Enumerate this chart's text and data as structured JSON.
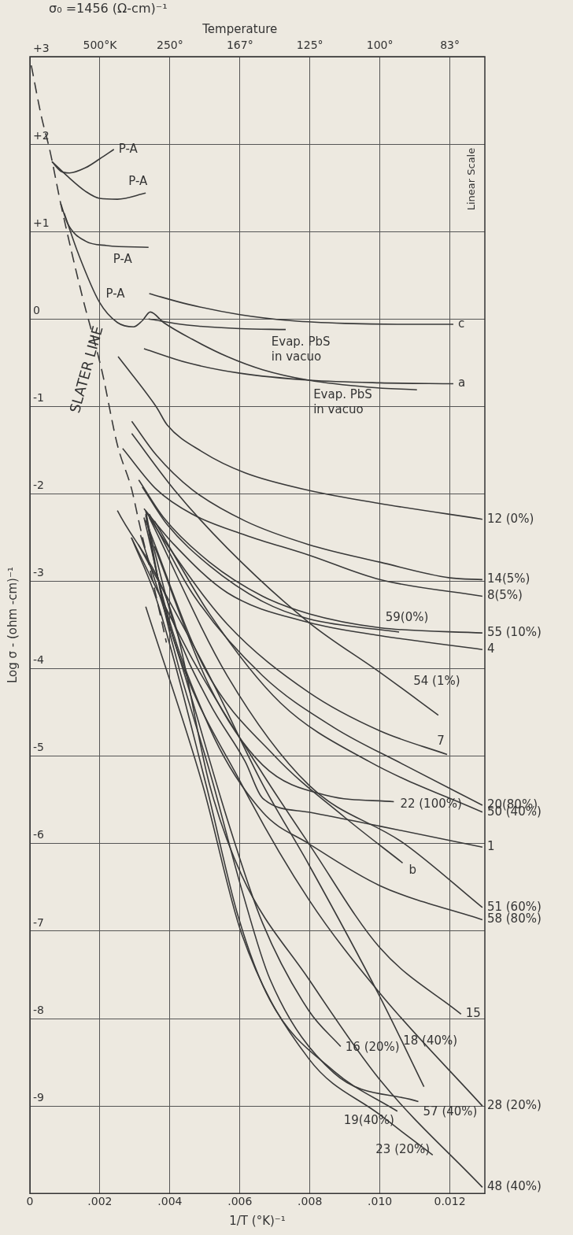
{
  "chart_data": {
    "type": "line",
    "xlabel": "1/T (°K)⁻¹",
    "ylabel": "Log σ - (ohm -cm)⁻¹",
    "xlim": [
      0,
      0.013
    ],
    "xticks": [
      {
        "value": 0,
        "label": "0"
      },
      {
        "value": 0.002,
        "label": ".002"
      },
      {
        "value": 0.004,
        "label": ".004"
      },
      {
        "value": 0.006,
        "label": ".006"
      },
      {
        "value": 0.008,
        "label": ".008"
      },
      {
        "value": 0.01,
        "label": ".010"
      },
      {
        "value": 0.012,
        "label": "0.012"
      }
    ],
    "ylim": [
      -10,
      3
    ],
    "yticks": [
      {
        "value": 3,
        "label": "+3"
      },
      {
        "value": 2,
        "label": "+2"
      },
      {
        "value": 1,
        "label": "+1"
      },
      0,
      -1,
      -2,
      -3,
      -4,
      -5,
      -6,
      -7,
      -8,
      -9,
      {
        "value": -10,
        "label": null
      }
    ],
    "grid": true,
    "legend": false,
    "annotations": [
      "σ₀ =1456 (Ω-cm)⁻¹",
      "Linear Scale",
      "Evap. PbS in vacuo",
      "Evap. PbS in vacuo",
      "Temperature",
      "500°K",
      "250°",
      "167°",
      "125°",
      "100°",
      "83°"
    ],
    "series": [
      {
        "name": "SLATER LINE",
        "color": "#3a3a3a",
        "line_style": "dashed",
        "x": [
          4e-05,
          0.00032,
          0.00058,
          0.00088,
          0.00149,
          0.00205,
          0.0025,
          0.00291,
          0.00311,
          0.0035,
          0.0039
        ],
        "values": [
          2.9,
          2.33,
          1.91,
          1.32,
          0.27,
          -0.58,
          -1.44,
          -1.95,
          -2.31,
          -2.98,
          -3.7
        ]
      },
      {
        "name": "P-A",
        "color": "#3a3a3a",
        "x": [
          0.00063,
          0.00088,
          0.00113,
          0.00159,
          0.00199,
          0.0024
        ],
        "values": [
          1.8,
          1.69,
          1.67,
          1.73,
          1.83,
          1.94
        ]
      },
      {
        "name": "P-A",
        "color": "#3a3a3a",
        "x": [
          0.00063,
          0.00108,
          0.00159,
          0.00199,
          0.0025,
          0.00331
        ],
        "values": [
          1.8,
          1.63,
          1.46,
          1.38,
          1.37,
          1.44
        ]
      },
      {
        "name": "P-A",
        "color": "#3a3a3a",
        "x": [
          0.00088,
          0.00108,
          0.00159,
          0.0022,
          0.00339
        ],
        "values": [
          1.32,
          1.09,
          0.89,
          0.84,
          0.82
        ]
      },
      {
        "name": "P-A",
        "color": "#3a3a3a",
        "x": [
          0.00098,
          0.00139,
          0.00199,
          0.0025,
          0.00296,
          0.00321,
          0.00344,
          0.00382,
          0.00463,
          0.00564,
          0.00665,
          0.00797,
          0.00969,
          0.01106
        ],
        "values": [
          1.21,
          0.74,
          0.19,
          -0.04,
          -0.09,
          -0.02,
          0.08,
          -0.04,
          -0.23,
          -0.43,
          -0.58,
          -0.7,
          -0.78,
          -0.81
        ]
      },
      {
        "color": "#3a3a3a",
        "x": [
          0.00339,
          0.0045,
          0.006,
          0.00731
        ],
        "values": [
          0,
          -0.07,
          -0.11,
          -0.12
        ]
      },
      {
        "name": "c",
        "color": "#3a3a3a",
        "x": [
          0.00341,
          0.0045,
          0.006,
          0.0075,
          0.009,
          0.0105,
          0.0121
        ],
        "values": [
          0.29,
          0.17,
          0.05,
          -0.02,
          -0.05,
          -0.06,
          -0.06
        ]
      },
      {
        "name": "a",
        "color": "#3a3a3a",
        "x": [
          0.00326,
          0.0045,
          0.006,
          0.008,
          0.01,
          0.0121
        ],
        "values": [
          -0.34,
          -0.5,
          -0.62,
          -0.7,
          -0.73,
          -0.74
        ]
      },
      {
        "name": "12 (0%)",
        "color": "#3a3a3a",
        "x": [
          0.00252,
          0.00362,
          0.00392,
          0.00493,
          0.00615,
          0.00797,
          0.01,
          0.01293
        ],
        "values": [
          -0.43,
          -1.01,
          -1.21,
          -1.52,
          -1.76,
          -1.96,
          -2.11,
          -2.29
        ]
      },
      {
        "name": "14(5%)",
        "color": "#3a3a3a",
        "x": [
          0.00291,
          0.00362,
          0.00463,
          0.00615,
          0.00797,
          0.01,
          0.012,
          0.01293
        ],
        "values": [
          -1.17,
          -1.56,
          -1.95,
          -2.31,
          -2.58,
          -2.78,
          -2.96,
          -2.98
        ]
      },
      {
        "name": "8(5%)",
        "color": "#3a3a3a",
        "x": [
          0.00265,
          0.00362,
          0.00463,
          0.00615,
          0.00797,
          0.01,
          0.01293
        ],
        "values": [
          -1.48,
          -1.95,
          -2.23,
          -2.47,
          -2.7,
          -2.98,
          -3.17
        ]
      },
      {
        "name": "59(0%)",
        "color": "#3a3a3a",
        "x": [
          0.00321,
          0.00392,
          0.00513,
          0.00665,
          0.00797,
          0.01055
        ],
        "values": [
          -1.92,
          -2.35,
          -2.82,
          -3.23,
          -3.43,
          -3.58
        ]
      },
      {
        "name": "55 (10%)",
        "color": "#3a3a3a",
        "x": [
          0.00311,
          0.00382,
          0.00513,
          0.00665,
          0.00797,
          0.01,
          0.01293
        ],
        "values": [
          -1.84,
          -2.27,
          -2.78,
          -3.17,
          -3.37,
          -3.53,
          -3.59
        ]
      },
      {
        "name": "4",
        "color": "#3a3a3a",
        "x": [
          0.00326,
          0.00412,
          0.00564,
          0.00797,
          0.01,
          0.01293
        ],
        "values": [
          -2.17,
          -2.58,
          -3.13,
          -3.47,
          -3.62,
          -3.78
        ]
      },
      {
        "name": "54 (1%)",
        "color": "#3a3a3a",
        "x": [
          0.00291,
          0.00412,
          0.00564,
          0.00797,
          0.01,
          0.01167
        ],
        "values": [
          -1.31,
          -1.95,
          -2.62,
          -3.47,
          -4.04,
          -4.53
        ]
      },
      {
        "name": "7",
        "color": "#3a3a3a",
        "x": [
          0.00331,
          0.00392,
          0.00564,
          0.00797,
          0.01,
          0.01192
        ],
        "values": [
          -2.2,
          -2.58,
          -3.49,
          -4.27,
          -4.71,
          -4.98
        ]
      },
      {
        "name": "20(80%)",
        "color": "#3a3a3a",
        "x": [
          0.00341,
          0.00463,
          0.00665,
          0.00868,
          0.0107,
          0.01293
        ],
        "values": [
          -2.23,
          -3.13,
          -4.08,
          -4.67,
          -5.1,
          -5.56
        ]
      },
      {
        "name": "50 (40%)",
        "color": "#3a3a3a",
        "x": [
          0.00356,
          0.00513,
          0.00716,
          0.00969,
          0.01293
        ],
        "values": [
          -2.31,
          -3.37,
          -4.39,
          -5.06,
          -5.64
        ]
      },
      {
        "name": "22 (100%)",
        "color": "#3a3a3a",
        "x": [
          0.00356,
          0.00513,
          0.00665,
          0.0085,
          0.0104
        ],
        "values": [
          -2.6,
          -4.2,
          -5.1,
          -5.45,
          -5.52
        ]
      },
      {
        "name": "1",
        "color": "#3a3a3a",
        "x": [
          0.00331,
          0.00412,
          0.00513,
          0.00615,
          0.00665,
          0.00797,
          0.01,
          0.01293
        ],
        "values": [
          -2.25,
          -3.49,
          -4.39,
          -5.06,
          -5.48,
          -5.64,
          -5.8,
          -6.04
        ]
      },
      {
        "name": "b",
        "color": "#3a3a3a",
        "x": [
          0.0033,
          0.005,
          0.007,
          0.009,
          0.01065
        ],
        "values": [
          -2.3,
          -4,
          -5,
          -5.7,
          -6.22
        ]
      },
      {
        "name": "51 (60%)",
        "color": "#3a3a3a",
        "x": [
          0.00341,
          0.00564,
          0.00797,
          0.0107,
          0.01293
        ],
        "values": [
          -2.27,
          -4.08,
          -5.33,
          -6,
          -6.73
        ]
      },
      {
        "name": "58 (80%)",
        "color": "#3a3a3a",
        "x": [
          0.00331,
          0.00362,
          0.00513,
          0.00665,
          0.00797,
          0.01,
          0.01293
        ],
        "values": [
          -2.23,
          -2.9,
          -4.67,
          -5.64,
          -6,
          -6.48,
          -6.87
        ]
      },
      {
        "name": "15",
        "color": "#3a3a3a",
        "x": [
          0.0029,
          0.00463,
          0.00665,
          0.00797,
          0.01,
          0.01232
        ],
        "values": [
          -2.5,
          -3.88,
          -5.2,
          -6,
          -7.19,
          -7.95
        ]
      },
      {
        "name": "16 (20%)",
        "color": "#3a3a3a",
        "x": [
          0.00316,
          0.00443,
          0.00564,
          0.00665,
          0.00797,
          0.00888
        ],
        "values": [
          -2.47,
          -4.08,
          -5.72,
          -6.91,
          -7.91,
          -8.32
        ]
      },
      {
        "name": "18 (40%)",
        "color": "#3a3a3a",
        "x": [
          0.0031,
          0.00513,
          0.00665,
          0.00797,
          0.01,
          0.01126
        ],
        "values": [
          -2.58,
          -4.08,
          -5.32,
          -6.24,
          -7.75,
          -8.78
        ]
      },
      {
        "name": "28 (20%)",
        "color": "#3a3a3a",
        "x": [
          0.00326,
          0.00412,
          0.00605,
          0.00797,
          0.01,
          0.01293
        ],
        "values": [
          -2.27,
          -3.68,
          -5.32,
          -6.64,
          -7.71,
          -9
        ]
      },
      {
        "name": "57 (40%)",
        "color": "#3a3a3a",
        "x": [
          0.00331,
          0.00382,
          0.00524,
          0.00605,
          0.00686,
          0.00868,
          0.0111
        ],
        "values": [
          -2.19,
          -3.29,
          -5.32,
          -6.52,
          -7.55,
          -8.62,
          -8.95
        ]
      },
      {
        "name": "19(40%)",
        "color": "#3a3a3a",
        "x": [
          0.0029,
          0.00362,
          0.00503,
          0.00595,
          0.00686,
          0.00868,
          0.0105
        ],
        "values": [
          -2.5,
          -3.21,
          -5.32,
          -6.83,
          -7.79,
          -8.6,
          -9.06
        ]
      },
      {
        "name": "23 (20%)",
        "color": "#3a3a3a",
        "x": [
          0.00331,
          0.00493,
          0.00605,
          0.00797,
          0.01,
          0.01151
        ],
        "values": [
          -3.29,
          -5.32,
          -7.03,
          -8.46,
          -9.1,
          -9.56
        ]
      },
      {
        "name": "48 (40%)",
        "color": "#3a3a3a",
        "x": [
          0.0025,
          0.00412,
          0.00513,
          0.00605,
          0.00797,
          0.01,
          0.01293
        ],
        "values": [
          -2.19,
          -3.45,
          -5.32,
          -6.36,
          -7.55,
          -8.7,
          -9.93
        ]
      }
    ]
  }
}
